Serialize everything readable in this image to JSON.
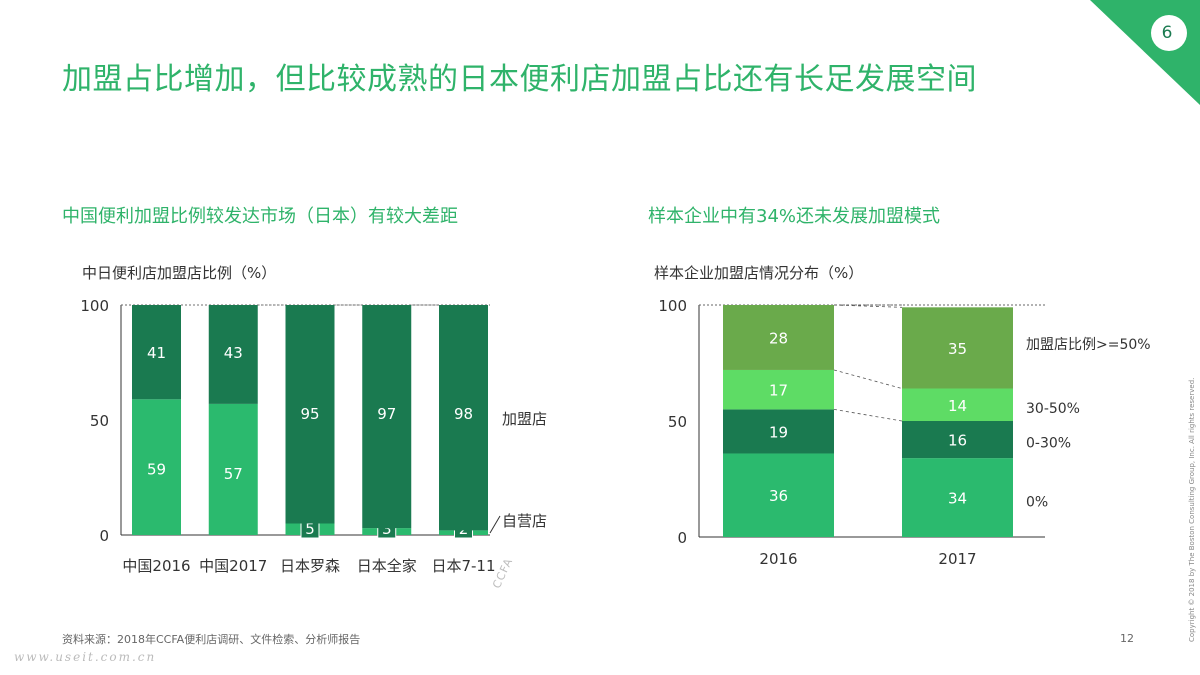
{
  "page": {
    "number_badge": "6",
    "title": "加盟占比增加，但比较成熟的日本便利店加盟占比还有长足发展空间",
    "footnote": "资料来源：2018年CCFA便利店调研、文件检索、分析师报告",
    "page_number": "12",
    "copyright": "Copyright © 2018 by The Boston Consulting Group, Inc. All rights reserved.",
    "watermark": "www.useit.com.cn",
    "ccfa_mark": "CCFA"
  },
  "colors": {
    "accent": "#2fb36a",
    "franchise_dark": "#1a7a50",
    "light_green": "#2bba6e",
    "olive": "#6aaa4b",
    "bright": "#5edc65"
  },
  "left": {
    "subtitle": "中国便利加盟比例较发达市场（日本）有较大差距",
    "chart_label": "中日便利店加盟店比例（%）"
  },
  "right": {
    "subtitle": "样本企业中有34%还未发展加盟模式",
    "chart_label": "样本企业加盟店情况分布（%）"
  },
  "chart_data": [
    {
      "type": "bar",
      "stacked": true,
      "categories": [
        "中国2016",
        "中国2017",
        "日本罗森",
        "日本全家",
        "日本7-11"
      ],
      "series": [
        {
          "name": "自营店",
          "values": [
            59,
            57,
            5,
            3,
            2
          ],
          "color": "#2bba6e"
        },
        {
          "name": "加盟店",
          "values": [
            41,
            43,
            95,
            97,
            98
          ],
          "color": "#1a7a50"
        }
      ],
      "yticks": [
        0,
        50,
        100
      ],
      "ylim": [
        0,
        100
      ]
    },
    {
      "type": "bar",
      "stacked": true,
      "categories": [
        "2016",
        "2017"
      ],
      "series": [
        {
          "name": "0%",
          "values": [
            36,
            34
          ],
          "color": "#2bba6e"
        },
        {
          "name": "0-30%",
          "values": [
            19,
            16
          ],
          "color": "#1a7a50"
        },
        {
          "name": "30-50%",
          "values": [
            17,
            14
          ],
          "color": "#5edc65"
        },
        {
          "name": "加盟店比例>=50%",
          "values": [
            28,
            35
          ],
          "color": "#6aaa4b"
        }
      ],
      "yticks": [
        0,
        50,
        100
      ],
      "ylim": [
        0,
        100
      ]
    }
  ]
}
